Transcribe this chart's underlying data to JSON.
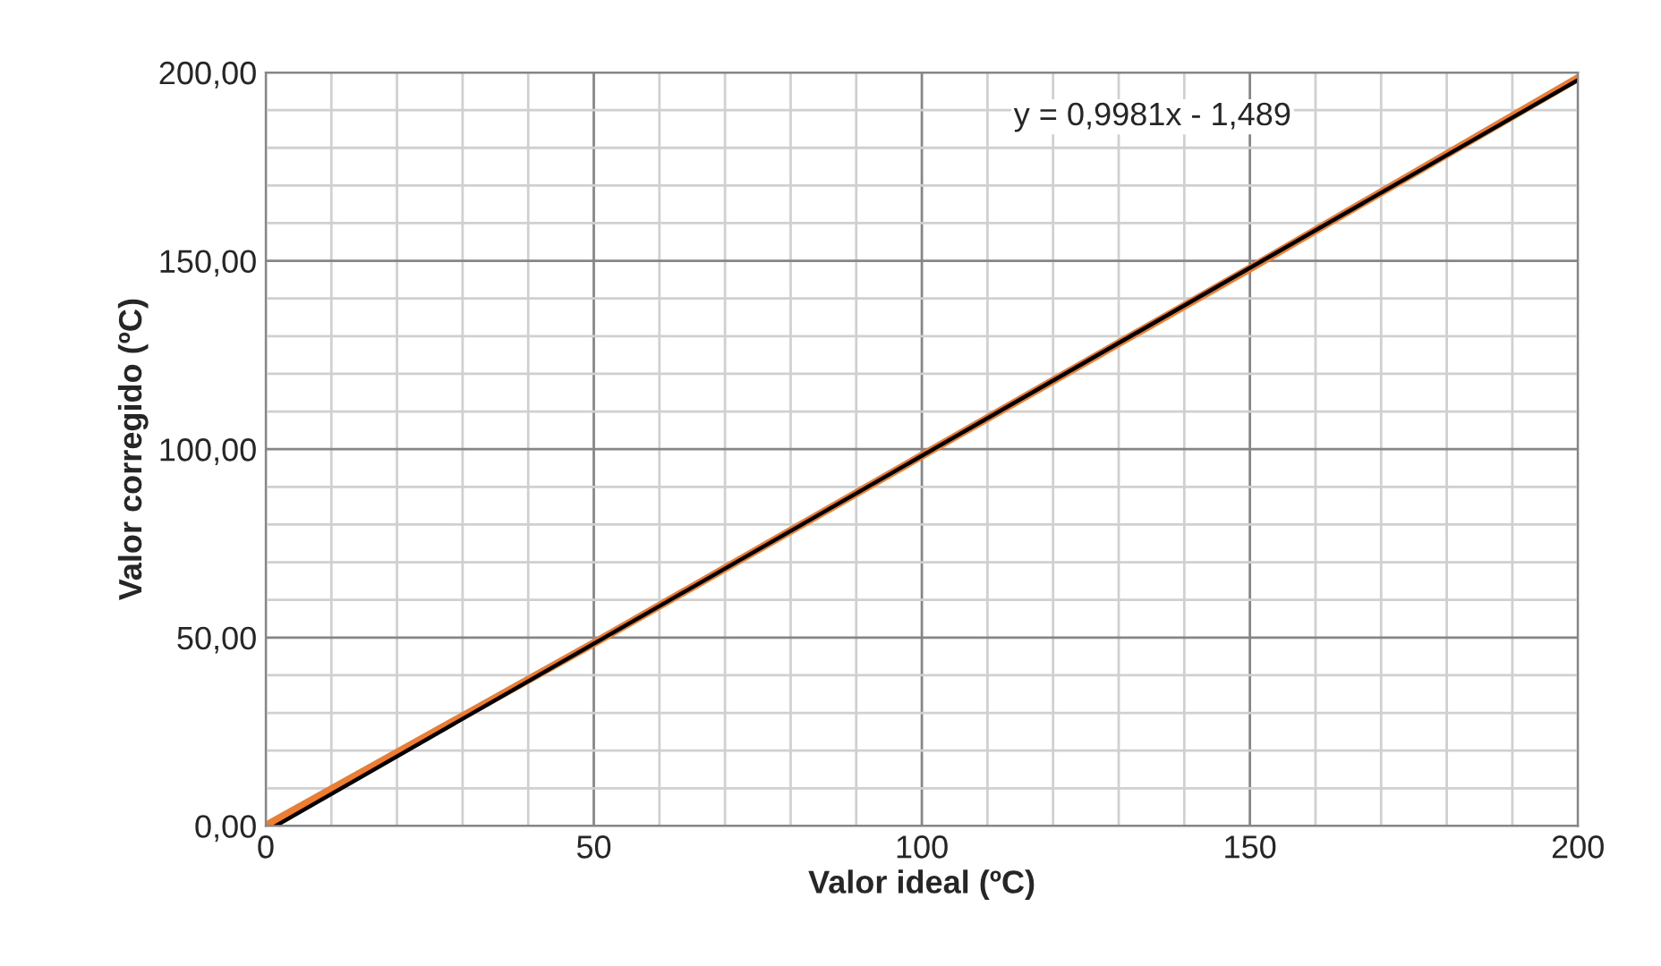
{
  "chart_data": {
    "type": "line",
    "xlabel": "Valor ideal (ºC)",
    "ylabel": "Valor corregido (ºC)",
    "series": [
      {
        "color": "#ed7d31",
        "x": [
          0,
          50,
          100,
          150,
          200
        ],
        "values": [
          0,
          48.5,
          98.3,
          148,
          198.5
        ]
      },
      {
        "color": "#000000",
        "x": [
          1.5,
          200
        ],
        "values": [
          0,
          198
        ]
      }
    ],
    "annotations": [
      "y = 0,9981x - 1,489"
    ],
    "xlim": [
      0,
      200
    ],
    "ylim": [
      0,
      200
    ],
    "xticks": [
      0,
      {
        "value": 10,
        "label": null
      },
      {
        "value": 20,
        "label": null
      },
      {
        "value": 30,
        "label": null
      },
      {
        "value": 40,
        "label": null
      },
      50,
      {
        "value": 60,
        "label": null
      },
      {
        "value": 70,
        "label": null
      },
      {
        "value": 80,
        "label": null
      },
      {
        "value": 90,
        "label": null
      },
      100,
      {
        "value": 110,
        "label": null
      },
      {
        "value": 120,
        "label": null
      },
      {
        "value": 130,
        "label": null
      },
      {
        "value": 140,
        "label": null
      },
      150,
      {
        "value": 160,
        "label": null
      },
      {
        "value": 170,
        "label": null
      },
      {
        "value": 180,
        "label": null
      },
      {
        "value": 190,
        "label": null
      },
      200
    ],
    "yticks": [
      {
        "value": 0,
        "label": "0,00"
      },
      {
        "value": 10,
        "label": null
      },
      {
        "value": 20,
        "label": null
      },
      {
        "value": 30,
        "label": null
      },
      {
        "value": 40,
        "label": null
      },
      {
        "value": 50,
        "label": "50,00"
      },
      {
        "value": 60,
        "label": null
      },
      {
        "value": 70,
        "label": null
      },
      {
        "value": 80,
        "label": null
      },
      {
        "value": 90,
        "label": null
      },
      {
        "value": 100,
        "label": "100,00"
      },
      {
        "value": 110,
        "label": null
      },
      {
        "value": 120,
        "label": null
      },
      {
        "value": 130,
        "label": null
      },
      {
        "value": 140,
        "label": null
      },
      {
        "value": 150,
        "label": "150,00"
      },
      {
        "value": 160,
        "label": null
      },
      {
        "value": 170,
        "label": null
      },
      {
        "value": 180,
        "label": null
      },
      {
        "value": 190,
        "label": null
      },
      {
        "value": 200,
        "label": "200,00"
      }
    ],
    "grid": true,
    "legend": false
  }
}
